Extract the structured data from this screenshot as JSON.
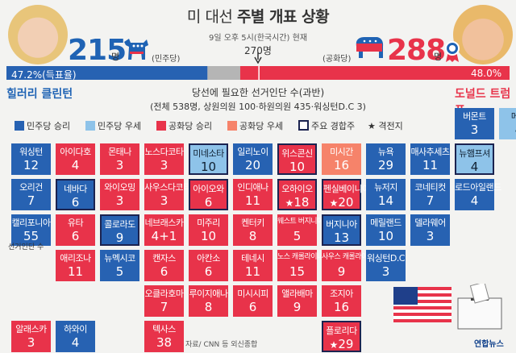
{
  "header": {
    "title_prefix": "미 대선",
    "title_main": "주별 개표 상황",
    "subtitle": "9일 오후 5시(한국시간) 현재",
    "threshold_label": "270명"
  },
  "democrat": {
    "electoral_votes": "215",
    "unit": "명",
    "party": "(민주당)",
    "percent_label": "47.2%(득표율)",
    "name": "힐러리 클린턴",
    "color": "#2762b2"
  },
  "republican": {
    "electoral_votes": "288",
    "unit": "명",
    "party": "(공화당)",
    "percent_label": "48.0%",
    "name": "도널드 트럼프",
    "color": "#e8334a"
  },
  "requirement": {
    "title": "당선에 필요한 선거인단 수(과반)",
    "detail": "(전체 538명, 상원의원 100·하원의원 435·워싱턴D.C 3)"
  },
  "legend": [
    {
      "label": "민주당 승리",
      "color": "#2762b2"
    },
    {
      "label": "민주당 우세",
      "color": "#8ec3e9"
    },
    {
      "label": "공화당 승리",
      "color": "#e8334a"
    },
    {
      "label": "공화당 우세",
      "color": "#f6836a"
    },
    {
      "label": "주요 경합주",
      "color": "#ffffff"
    },
    {
      "label": "격전지",
      "color": ""
    }
  ],
  "map_note": "선거인단 수",
  "source": "자료/ CNN 등 외신종합",
  "credit": "연합뉴스",
  "chart_data": {
    "type": "table",
    "total_electoral_votes": 538,
    "majority_needed": 270,
    "popular_vote_share": [
      {
        "candidate": "힐러리 클린턴",
        "share": 47.2
      },
      {
        "candidate": "도널드 트럼프",
        "share": 48.0
      }
    ],
    "electoral_votes_won": [
      {
        "candidate": "힐러리 클린턴",
        "votes": 215
      },
      {
        "candidate": "도널드 트럼프",
        "votes": 288
      }
    ],
    "states": [
      {
        "name": "버몬트",
        "ev": "3",
        "status": "dem_win",
        "key": false,
        "star": false,
        "col": 10,
        "row": 0
      },
      {
        "name": "메인",
        "ev": "4",
        "status": "dem_lean",
        "key": false,
        "star": false,
        "col": 11,
        "row": 0
      },
      {
        "name": "워싱턴",
        "ev": "12",
        "status": "dem_win",
        "key": false,
        "star": false,
        "col": 0,
        "row": 1
      },
      {
        "name": "아이다호",
        "ev": "4",
        "status": "rep_win",
        "key": false,
        "star": false,
        "col": 1,
        "row": 1
      },
      {
        "name": "몬태나",
        "ev": "3",
        "status": "rep_win",
        "key": false,
        "star": false,
        "col": 2,
        "row": 1
      },
      {
        "name": "노스다코타",
        "ev": "3",
        "status": "rep_win",
        "key": false,
        "star": false,
        "col": 3,
        "row": 1
      },
      {
        "name": "미네소타",
        "ev": "10",
        "status": "dem_lean",
        "key": true,
        "star": false,
        "col": 4,
        "row": 1
      },
      {
        "name": "일리노이",
        "ev": "20",
        "status": "dem_win",
        "key": false,
        "star": false,
        "col": 5,
        "row": 1
      },
      {
        "name": "위스콘신",
        "ev": "10",
        "status": "rep_win",
        "key": true,
        "star": false,
        "col": 6,
        "row": 1
      },
      {
        "name": "미시간",
        "ev": "16",
        "status": "rep_lean",
        "key": false,
        "star": false,
        "col": 7,
        "row": 1
      },
      {
        "name": "뉴욕",
        "ev": "29",
        "status": "dem_win",
        "key": false,
        "star": false,
        "col": 8,
        "row": 1
      },
      {
        "name": "매사추세츠",
        "ev": "11",
        "status": "dem_win",
        "key": false,
        "star": false,
        "col": 9,
        "row": 1
      },
      {
        "name": "뉴햄프셔",
        "ev": "4",
        "status": "dem_lean",
        "key": true,
        "star": false,
        "col": 10,
        "row": 1
      },
      {
        "name": "오리건",
        "ev": "7",
        "status": "dem_win",
        "key": false,
        "star": false,
        "col": 0,
        "row": 2
      },
      {
        "name": "네바다",
        "ev": "6",
        "status": "dem_win",
        "key": true,
        "star": false,
        "col": 1,
        "row": 2
      },
      {
        "name": "와이오밍",
        "ev": "3",
        "status": "rep_win",
        "key": false,
        "star": false,
        "col": 2,
        "row": 2
      },
      {
        "name": "사우스다코타",
        "ev": "3",
        "status": "rep_win",
        "key": false,
        "star": false,
        "col": 3,
        "row": 2
      },
      {
        "name": "아이오와",
        "ev": "6",
        "status": "rep_win",
        "key": true,
        "star": false,
        "col": 4,
        "row": 2
      },
      {
        "name": "인디애나",
        "ev": "11",
        "status": "rep_win",
        "key": false,
        "star": false,
        "col": 5,
        "row": 2
      },
      {
        "name": "오하이오",
        "ev": "18",
        "status": "rep_win",
        "key": true,
        "star": true,
        "col": 6,
        "row": 2
      },
      {
        "name": "펜실베이니아",
        "ev": "20",
        "status": "rep_win",
        "key": true,
        "star": true,
        "col": 7,
        "row": 2
      },
      {
        "name": "뉴저지",
        "ev": "14",
        "status": "dem_win",
        "key": false,
        "star": false,
        "col": 8,
        "row": 2
      },
      {
        "name": "코네티컷",
        "ev": "7",
        "status": "dem_win",
        "key": false,
        "star": false,
        "col": 9,
        "row": 2
      },
      {
        "name": "로드아일랜드",
        "ev": "4",
        "status": "dem_win",
        "key": false,
        "star": false,
        "col": 10,
        "row": 2
      },
      {
        "name": "캘리포니아",
        "ev": "55",
        "status": "dem_win",
        "key": false,
        "star": false,
        "col": 0,
        "row": 3
      },
      {
        "name": "유타",
        "ev": "6",
        "status": "rep_win",
        "key": false,
        "star": false,
        "col": 1,
        "row": 3
      },
      {
        "name": "콜로라도",
        "ev": "9",
        "status": "dem_win",
        "key": true,
        "star": false,
        "col": 2,
        "row": 3
      },
      {
        "name": "네브래스카",
        "ev": "4+1",
        "status": "rep_win",
        "key": false,
        "star": false,
        "col": 3,
        "row": 3
      },
      {
        "name": "미주리",
        "ev": "10",
        "status": "rep_win",
        "key": false,
        "star": false,
        "col": 4,
        "row": 3
      },
      {
        "name": "켄터키",
        "ev": "8",
        "status": "rep_win",
        "key": false,
        "star": false,
        "col": 5,
        "row": 3
      },
      {
        "name": "웨스트 버지니아",
        "ev": "5",
        "status": "rep_win",
        "key": false,
        "star": false,
        "col": 6,
        "row": 3
      },
      {
        "name": "버지니아",
        "ev": "13",
        "status": "dem_win",
        "key": true,
        "star": false,
        "col": 7,
        "row": 3
      },
      {
        "name": "메릴랜드",
        "ev": "10",
        "status": "dem_win",
        "key": false,
        "star": false,
        "col": 8,
        "row": 3
      },
      {
        "name": "델라웨어",
        "ev": "3",
        "status": "dem_win",
        "key": false,
        "star": false,
        "col": 9,
        "row": 3
      },
      {
        "name": "애리조나",
        "ev": "11",
        "status": "rep_win",
        "key": false,
        "star": false,
        "col": 1,
        "row": 4
      },
      {
        "name": "뉴멕시코",
        "ev": "5",
        "status": "dem_win",
        "key": false,
        "star": false,
        "col": 2,
        "row": 4
      },
      {
        "name": "캔자스",
        "ev": "6",
        "status": "rep_win",
        "key": false,
        "star": false,
        "col": 3,
        "row": 4
      },
      {
        "name": "아칸소",
        "ev": "6",
        "status": "rep_win",
        "key": false,
        "star": false,
        "col": 4,
        "row": 4
      },
      {
        "name": "테네시",
        "ev": "11",
        "status": "rep_win",
        "key": false,
        "star": false,
        "col": 5,
        "row": 4
      },
      {
        "name": "노스 캐롤라이나",
        "ev": "15",
        "status": "rep_win",
        "key": false,
        "star": false,
        "col": 6,
        "row": 4
      },
      {
        "name": "사우스 캐롤라이나",
        "ev": "9",
        "status": "rep_win",
        "key": false,
        "star": false,
        "col": 7,
        "row": 4
      },
      {
        "name": "워싱턴D.C",
        "ev": "3",
        "status": "dem_win",
        "key": false,
        "star": false,
        "col": 8,
        "row": 4
      },
      {
        "name": "오클라호마",
        "ev": "7",
        "status": "rep_win",
        "key": false,
        "star": false,
        "col": 3,
        "row": 5
      },
      {
        "name": "루이지애나",
        "ev": "8",
        "status": "rep_win",
        "key": false,
        "star": false,
        "col": 4,
        "row": 5
      },
      {
        "name": "미시시피",
        "ev": "6",
        "status": "rep_win",
        "key": false,
        "star": false,
        "col": 5,
        "row": 5
      },
      {
        "name": "앨라배마",
        "ev": "9",
        "status": "rep_win",
        "key": false,
        "star": false,
        "col": 6,
        "row": 5
      },
      {
        "name": "조지아",
        "ev": "16",
        "status": "rep_win",
        "key": false,
        "star": false,
        "col": 7,
        "row": 5
      },
      {
        "name": "알래스카",
        "ev": "3",
        "status": "rep_win",
        "key": false,
        "star": false,
        "col": 0,
        "row": 6
      },
      {
        "name": "하와이",
        "ev": "4",
        "status": "dem_win",
        "key": false,
        "star": false,
        "col": 1,
        "row": 6
      },
      {
        "name": "텍사스",
        "ev": "38",
        "status": "rep_win",
        "key": false,
        "star": false,
        "col": 3,
        "row": 6
      },
      {
        "name": "플로리다",
        "ev": "29",
        "status": "rep_win",
        "key": true,
        "star": true,
        "col": 7,
        "row": 6
      }
    ]
  },
  "colors": {
    "dem_win": "#2762b2",
    "dem_lean": "#8ec3e9",
    "rep_win": "#e8334a",
    "rep_lean": "#f6836a",
    "undecided": "#b5b5b5",
    "key_border": "#1b2350"
  }
}
